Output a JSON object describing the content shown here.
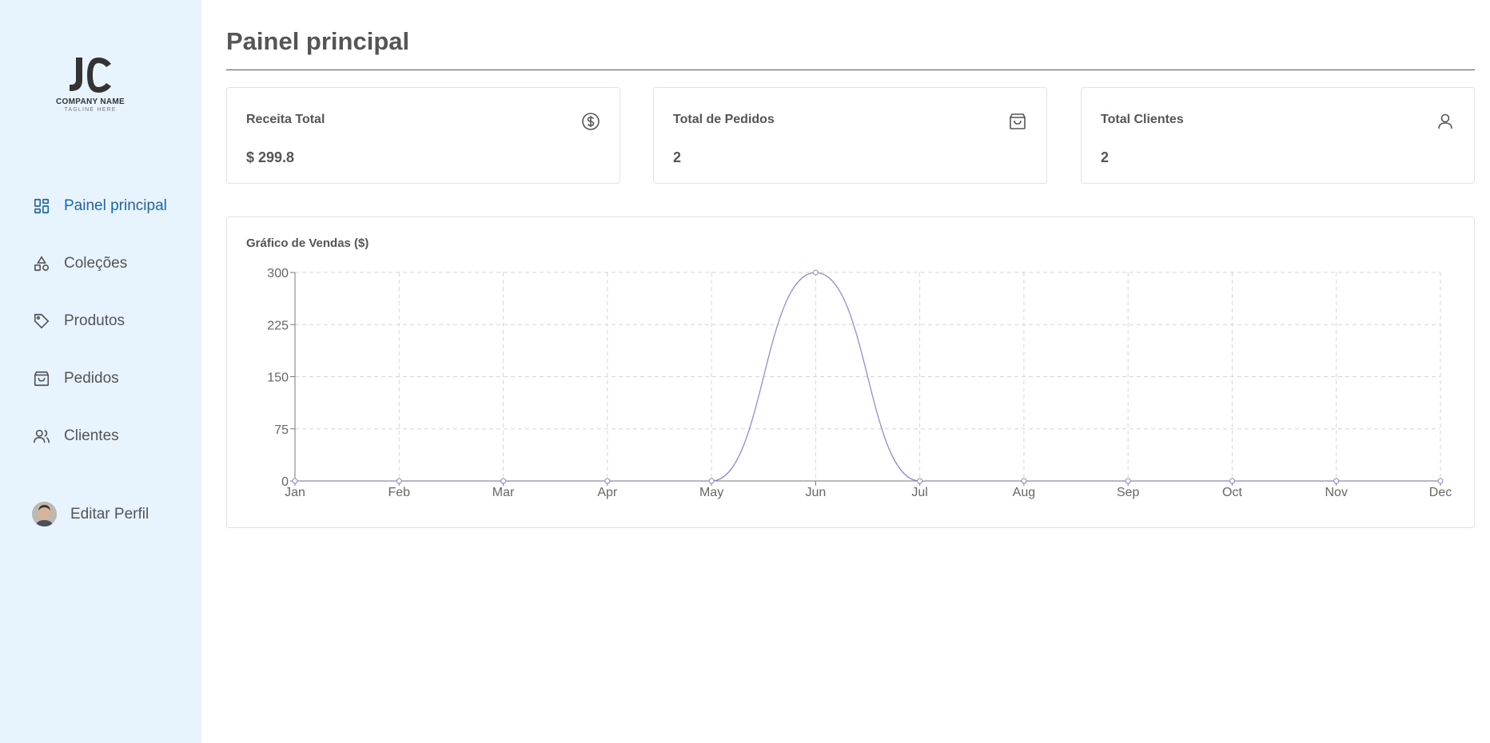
{
  "brand": {
    "company": "COMPANY NAME",
    "tagline": "TAGLINE HERE"
  },
  "sidebar": {
    "items": [
      {
        "label": "Painel principal",
        "icon": "dashboard-icon",
        "active": true
      },
      {
        "label": "Coleções",
        "icon": "shapes-icon",
        "active": false
      },
      {
        "label": "Produtos",
        "icon": "tag-icon",
        "active": false
      },
      {
        "label": "Pedidos",
        "icon": "shopping-bag-icon",
        "active": false
      },
      {
        "label": "Clientes",
        "icon": "users-icon",
        "active": false
      }
    ],
    "profile": {
      "label": "Editar Perfil",
      "icon": "avatar"
    }
  },
  "header": {
    "title": "Painel principal"
  },
  "cards": [
    {
      "label": "Receita Total",
      "value": "$ 299.8",
      "icon": "dollar-circle-icon"
    },
    {
      "label": "Total de Pedidos",
      "value": "2",
      "icon": "shopping-bag-icon"
    },
    {
      "label": "Total Clientes",
      "value": "2",
      "icon": "user-icon"
    }
  ],
  "colors": {
    "accent": "#1e63b0",
    "sidebar_bg": "#e8f4fd",
    "line": "#8884d8",
    "text": "#555555"
  },
  "chart_data": {
    "type": "line",
    "title": "Gráfico de Vendas ($)",
    "categories": [
      "Jan",
      "Feb",
      "Mar",
      "Apr",
      "May",
      "Jun",
      "Jul",
      "Aug",
      "Sep",
      "Oct",
      "Nov",
      "Dec"
    ],
    "series": [
      {
        "values": [
          0,
          0,
          0,
          0,
          0,
          299.8,
          0,
          0,
          0,
          0,
          0,
          0
        ]
      }
    ],
    "yticks": [
      0,
      75,
      150,
      225,
      300
    ],
    "ylim": [
      0,
      300
    ],
    "grid": true,
    "legend": "none",
    "xlabel": "",
    "ylabel": ""
  }
}
